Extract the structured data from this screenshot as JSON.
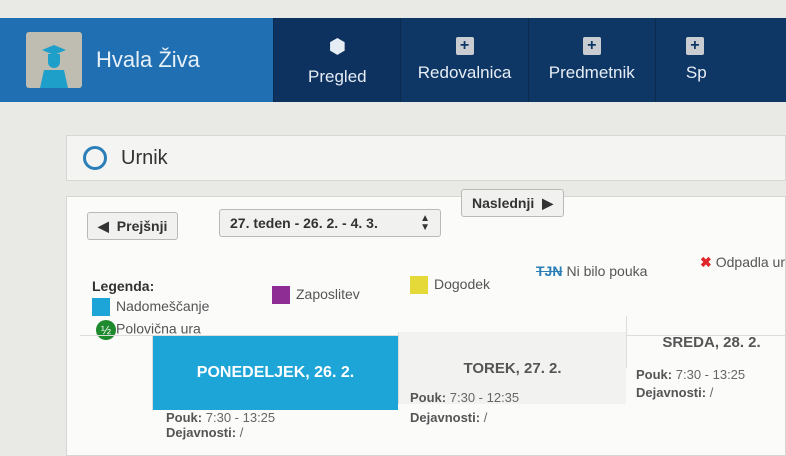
{
  "nav": {
    "user_name": "Hvala Živa",
    "tabs": [
      {
        "label": "Pregled",
        "icon": "cube-icon"
      },
      {
        "label": "Redovalnica",
        "icon": "plus-icon"
      },
      {
        "label": "Predmetnik",
        "icon": "plus-icon"
      },
      {
        "label": "Sp",
        "icon": "plus-icon"
      }
    ]
  },
  "page": {
    "title": "Urnik"
  },
  "toolbar": {
    "prev": "Prejšnji",
    "week": "27. teden - 26. 2. - 4. 3.",
    "next": "Naslednji"
  },
  "legend": {
    "title": "Legenda:",
    "items": [
      {
        "label": "Nadomeščanje",
        "color": "#1ea5d8"
      },
      {
        "label": "Zaposlitev",
        "color": "#8e2d93"
      },
      {
        "label": "Dogodek",
        "color": "#e5d93a"
      },
      {
        "mark": "TJN",
        "label": "Ni bilo pouka"
      },
      {
        "label": "Odpadla ur",
        "color": "#e0262b"
      },
      {
        "mark": "½",
        "label": "Polovična ura",
        "color": "#1e8a2e"
      }
    ]
  },
  "days": [
    {
      "header": "PONEDELJEK, 26. 2.",
      "pouk_label": "Pouk:",
      "pouk": "7:30 - 13:25",
      "dej_label": "Dejavnosti:",
      "dej": "/",
      "active": true
    },
    {
      "header": "TOREK, 27. 2.",
      "pouk_label": "Pouk:",
      "pouk": "7:30 - 12:35",
      "dej_label": "Dejavnosti:",
      "dej": "/"
    },
    {
      "header": "SREDA, 28. 2.",
      "pouk_label": "Pouk:",
      "pouk": "7:30 - 13:25",
      "dej_label": "Dejavnosti:",
      "dej": "/"
    }
  ]
}
